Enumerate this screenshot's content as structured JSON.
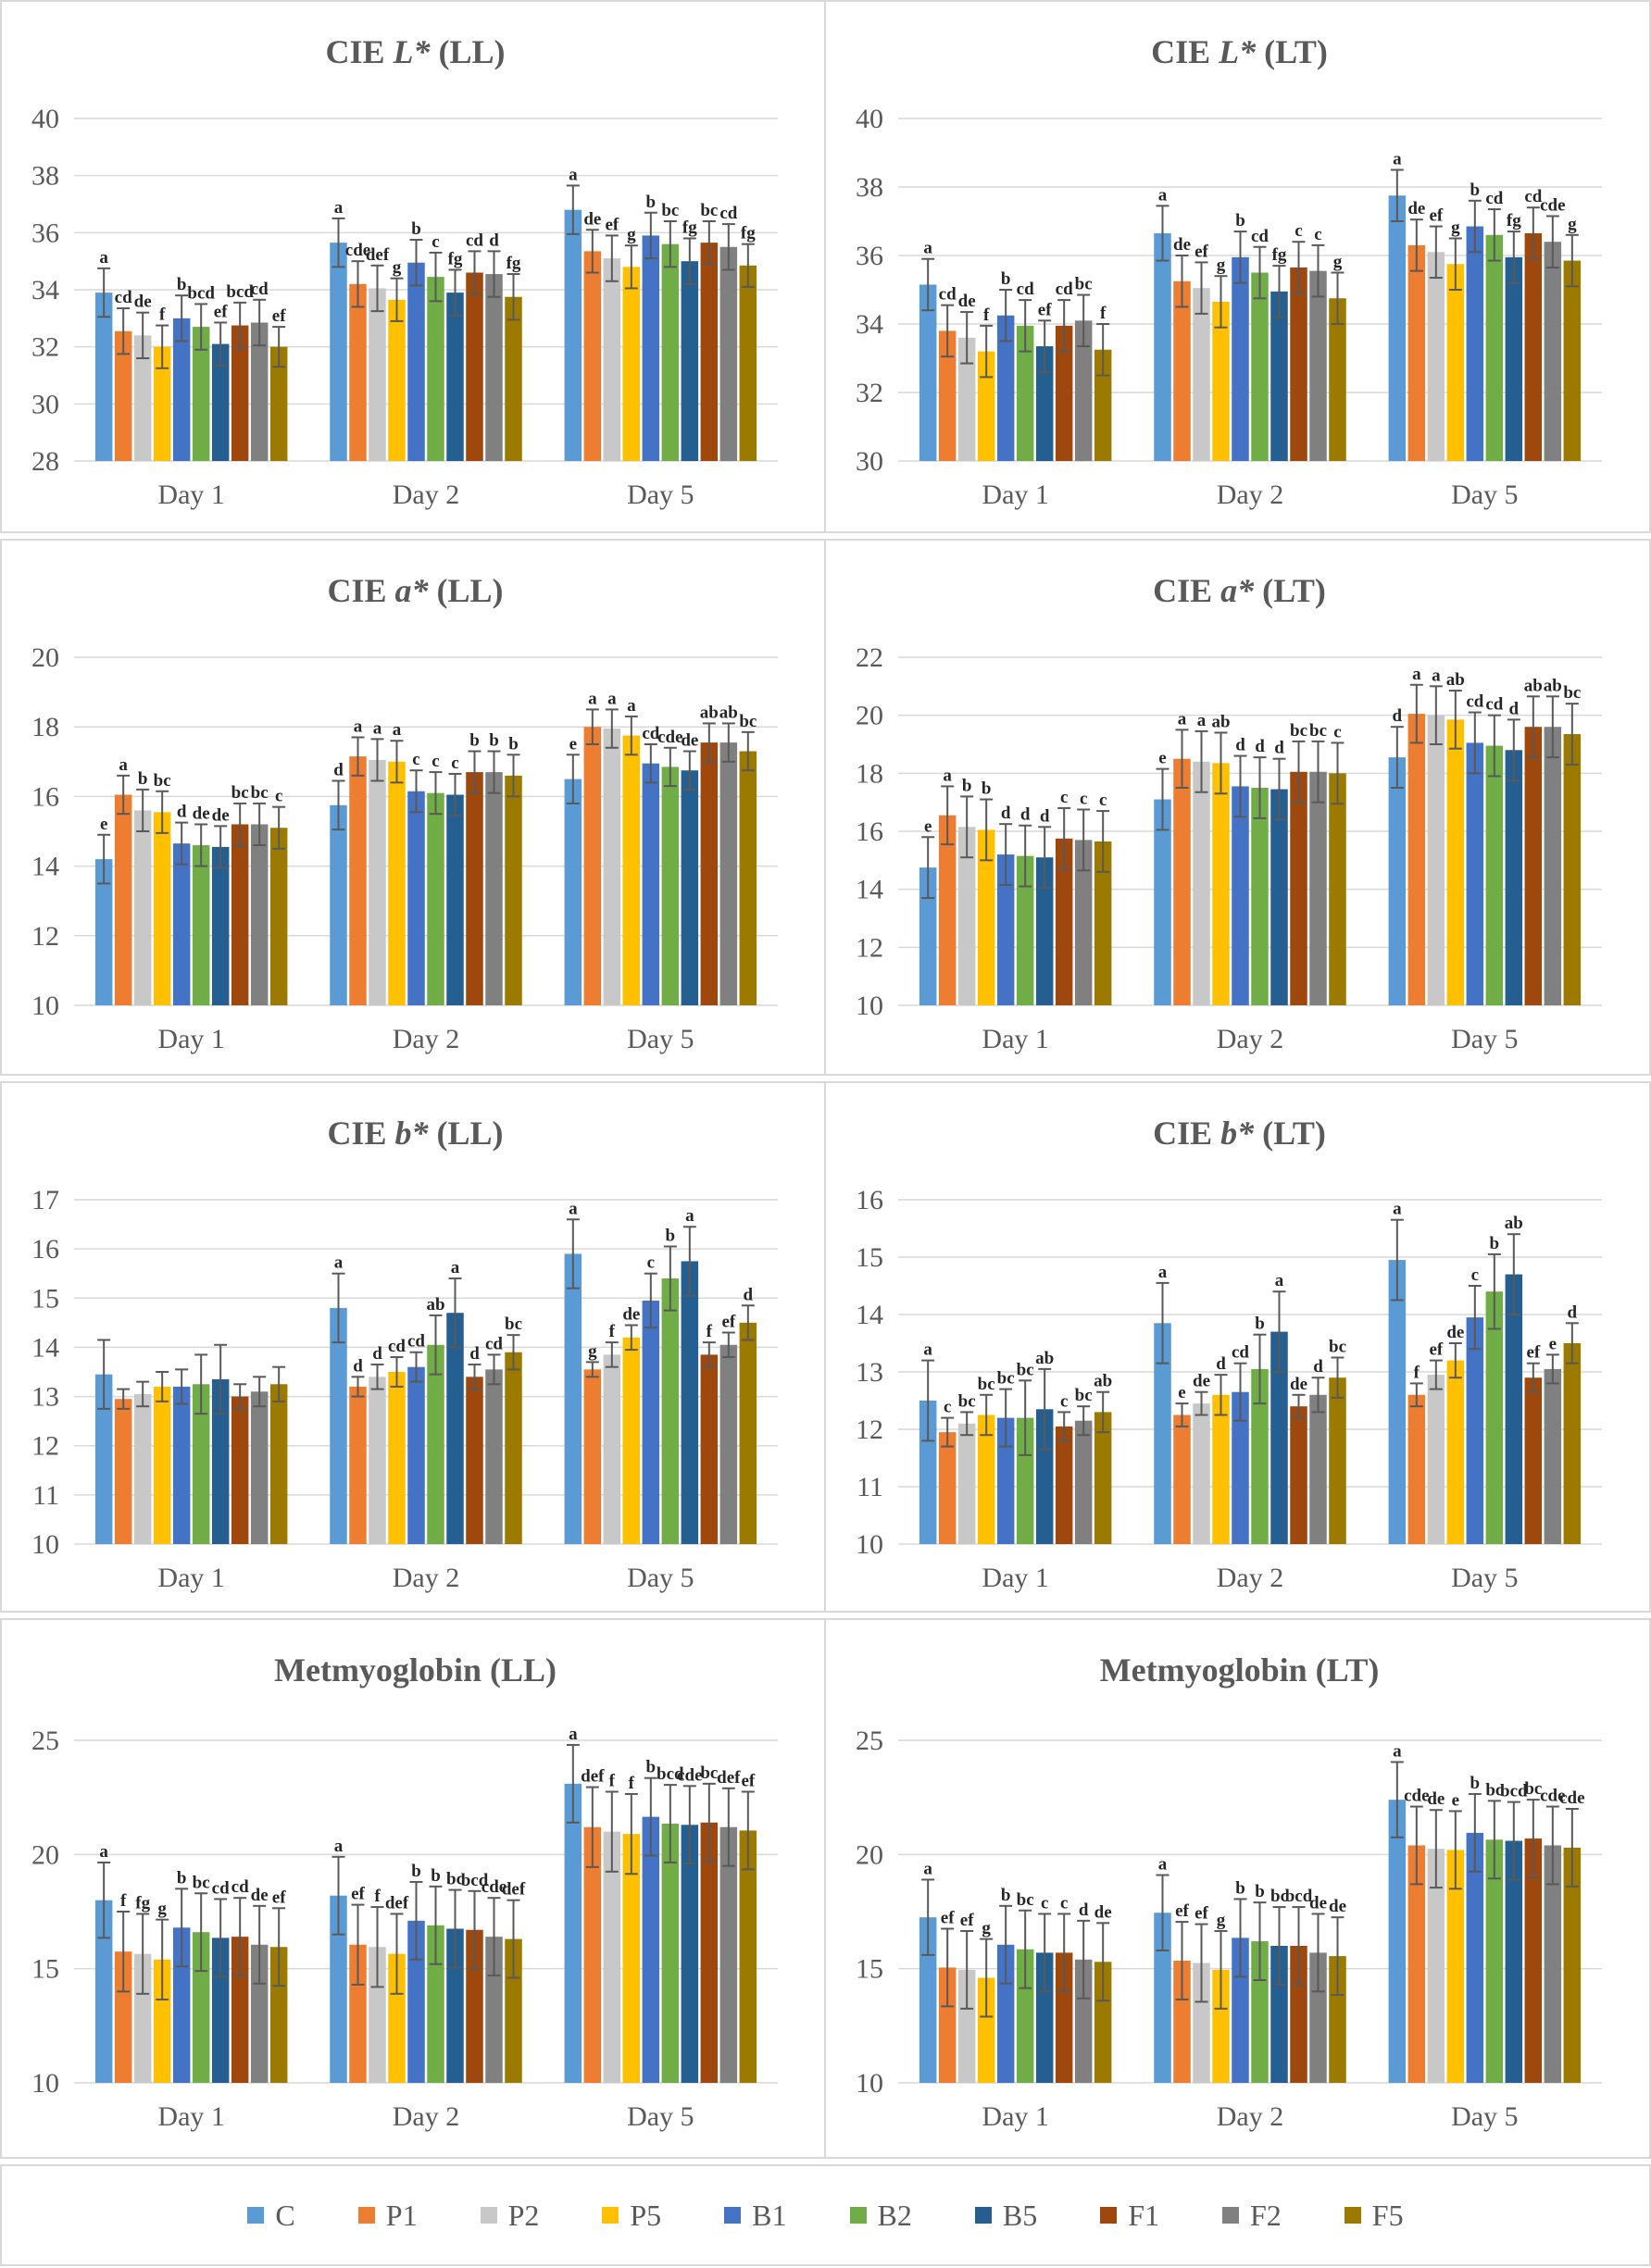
{
  "series": [
    "C",
    "P1",
    "P2",
    "P5",
    "B1",
    "B2",
    "B5",
    "F1",
    "F2",
    "F5"
  ],
  "colors": [
    "#5b9bd5",
    "#ed7d31",
    "#c8c8c8",
    "#ffc000",
    "#4472c4",
    "#70ad47",
    "#255e91",
    "#9e480e",
    "#808080",
    "#9c7a00"
  ],
  "categories": [
    "Day 1",
    "Day 2",
    "Day 5"
  ],
  "chart_data": [
    {
      "type": "bar",
      "title_pre": "CIE ",
      "title_var": "L*",
      "title_post": " (LL)",
      "ylim": [
        28,
        40
      ],
      "yticks": [
        28,
        30,
        32,
        34,
        36,
        38,
        40
      ],
      "values": [
        [
          33.9,
          32.55,
          32.4,
          32.0,
          33.0,
          32.7,
          32.1,
          32.75,
          32.85,
          32.0
        ],
        [
          35.65,
          34.2,
          34.05,
          33.65,
          34.95,
          34.45,
          33.9,
          34.6,
          34.55,
          33.75
        ],
        [
          36.8,
          35.35,
          35.1,
          34.8,
          35.9,
          35.6,
          35.0,
          35.65,
          35.5,
          34.85
        ]
      ],
      "errors": [
        [
          0.85,
          0.8,
          0.8,
          0.75,
          0.8,
          0.8,
          0.75,
          0.8,
          0.8,
          0.7
        ],
        [
          0.85,
          0.8,
          0.8,
          0.75,
          0.8,
          0.85,
          0.8,
          0.75,
          0.8,
          0.8
        ],
        [
          0.85,
          0.75,
          0.8,
          0.75,
          0.8,
          0.8,
          0.8,
          0.75,
          0.8,
          0.75
        ]
      ],
      "labels": [
        [
          "a",
          "cd",
          "de",
          "f",
          "b",
          "bcd",
          "ef",
          "bcd",
          "cd",
          "ef"
        ],
        [
          "a",
          "cde",
          "def",
          "g",
          "b",
          "c",
          "fg",
          "cd",
          "d",
          "fg"
        ],
        [
          "a",
          "de",
          "ef",
          "g",
          "b",
          "bc",
          "fg",
          "bc",
          "cd",
          "fg"
        ]
      ]
    },
    {
      "type": "bar",
      "title_pre": "CIE ",
      "title_var": "L*",
      "title_post": " (LT)",
      "ylim": [
        30,
        40
      ],
      "yticks": [
        30,
        32,
        34,
        36,
        38,
        40
      ],
      "values": [
        [
          35.15,
          33.8,
          33.6,
          33.2,
          34.25,
          33.95,
          33.35,
          33.95,
          34.1,
          33.25
        ],
        [
          36.65,
          35.25,
          35.05,
          34.65,
          35.95,
          35.5,
          34.95,
          35.65,
          35.55,
          34.75
        ],
        [
          37.75,
          36.3,
          36.1,
          35.75,
          36.85,
          36.6,
          35.95,
          36.65,
          36.4,
          35.85
        ]
      ],
      "errors": [
        [
          0.75,
          0.75,
          0.75,
          0.75,
          0.75,
          0.75,
          0.75,
          0.75,
          0.75,
          0.75
        ],
        [
          0.8,
          0.75,
          0.75,
          0.75,
          0.75,
          0.75,
          0.75,
          0.75,
          0.75,
          0.75
        ],
        [
          0.75,
          0.75,
          0.75,
          0.75,
          0.75,
          0.75,
          0.75,
          0.75,
          0.75,
          0.75
        ]
      ],
      "labels": [
        [
          "a",
          "cd",
          "de",
          "f",
          "b",
          "cd",
          "ef",
          "cd",
          "bc",
          "f"
        ],
        [
          "a",
          "de",
          "ef",
          "g",
          "b",
          "cd",
          "fg",
          "c",
          "c",
          "g"
        ],
        [
          "a",
          "de",
          "ef",
          "g",
          "b",
          "cd",
          "fg",
          "cd",
          "cde",
          "g"
        ]
      ]
    },
    {
      "type": "bar",
      "title_pre": "CIE ",
      "title_var": "a*",
      "title_post": " (LL)",
      "ylim": [
        10,
        20
      ],
      "yticks": [
        10,
        12,
        14,
        16,
        18,
        20
      ],
      "values": [
        [
          14.2,
          16.05,
          15.6,
          15.55,
          14.65,
          14.6,
          14.55,
          15.2,
          15.2,
          15.1
        ],
        [
          15.75,
          17.15,
          17.05,
          17.0,
          16.15,
          16.1,
          16.05,
          16.7,
          16.7,
          16.6
        ],
        [
          16.5,
          18.0,
          17.95,
          17.75,
          16.95,
          16.85,
          16.75,
          17.55,
          17.55,
          17.3
        ]
      ],
      "errors": [
        [
          0.7,
          0.55,
          0.6,
          0.6,
          0.6,
          0.6,
          0.6,
          0.6,
          0.6,
          0.6
        ],
        [
          0.7,
          0.55,
          0.6,
          0.6,
          0.6,
          0.6,
          0.6,
          0.6,
          0.6,
          0.6
        ],
        [
          0.7,
          0.5,
          0.55,
          0.55,
          0.55,
          0.55,
          0.55,
          0.55,
          0.55,
          0.55
        ]
      ],
      "labels": [
        [
          "e",
          "a",
          "b",
          "bc",
          "d",
          "de",
          "de",
          "bc",
          "bc",
          "c"
        ],
        [
          "d",
          "a",
          "a",
          "a",
          "c",
          "c",
          "c",
          "b",
          "b",
          "b"
        ],
        [
          "e",
          "a",
          "a",
          "a",
          "cd",
          "cde",
          "de",
          "ab",
          "ab",
          "bc"
        ]
      ]
    },
    {
      "type": "bar",
      "title_pre": "CIE ",
      "title_var": "a*",
      "title_post": " (LT)",
      "ylim": [
        10,
        22
      ],
      "yticks": [
        10,
        12,
        14,
        16,
        18,
        20,
        22
      ],
      "values": [
        [
          14.75,
          16.55,
          16.15,
          16.05,
          15.2,
          15.15,
          15.1,
          15.75,
          15.7,
          15.65
        ],
        [
          17.1,
          18.5,
          18.4,
          18.35,
          17.55,
          17.5,
          17.45,
          18.05,
          18.05,
          18.0
        ],
        [
          18.55,
          20.05,
          20.0,
          19.85,
          19.05,
          18.95,
          18.8,
          19.6,
          19.6,
          19.35
        ]
      ],
      "errors": [
        [
          1.05,
          1.0,
          1.05,
          1.05,
          1.05,
          1.05,
          1.05,
          1.05,
          1.05,
          1.05
        ],
        [
          1.05,
          1.0,
          1.05,
          1.05,
          1.05,
          1.05,
          1.05,
          1.05,
          1.05,
          1.05
        ],
        [
          1.05,
          1.0,
          1.0,
          1.0,
          1.05,
          1.05,
          1.05,
          1.05,
          1.05,
          1.05
        ]
      ],
      "labels": [
        [
          "e",
          "a",
          "b",
          "b",
          "d",
          "d",
          "d",
          "c",
          "c",
          "c"
        ],
        [
          "e",
          "a",
          "a",
          "ab",
          "d",
          "d",
          "d",
          "bc",
          "bc",
          "c"
        ],
        [
          "d",
          "a",
          "a",
          "ab",
          "cd",
          "cd",
          "d",
          "ab",
          "ab",
          "bc"
        ]
      ]
    },
    {
      "type": "bar",
      "title_pre": "CIE ",
      "title_var": "b*",
      "title_post": " (LL)",
      "ylim": [
        10,
        17
      ],
      "yticks": [
        10,
        11,
        12,
        13,
        14,
        15,
        16,
        17
      ],
      "values": [
        [
          13.45,
          12.95,
          13.05,
          13.2,
          13.2,
          13.25,
          13.35,
          13.0,
          13.1,
          13.25
        ],
        [
          14.8,
          13.2,
          13.4,
          13.5,
          13.6,
          14.05,
          14.7,
          13.4,
          13.55,
          13.9
        ],
        [
          15.9,
          13.55,
          13.85,
          14.2,
          14.95,
          15.4,
          15.75,
          13.85,
          14.05,
          14.5
        ]
      ],
      "errors": [
        [
          0.7,
          0.2,
          0.25,
          0.3,
          0.35,
          0.6,
          0.7,
          0.25,
          0.3,
          0.35
        ],
        [
          0.7,
          0.2,
          0.25,
          0.3,
          0.3,
          0.6,
          0.7,
          0.25,
          0.3,
          0.35
        ],
        [
          0.7,
          0.15,
          0.25,
          0.25,
          0.55,
          0.65,
          0.7,
          0.25,
          0.25,
          0.35
        ]
      ],
      "labels": [
        [
          "",
          "",
          "",
          "",
          "",
          "",
          "",
          "",
          "",
          ""
        ],
        [
          "a",
          "d",
          "d",
          "cd",
          "cd",
          "ab",
          "a",
          "d",
          "cd",
          "bc"
        ],
        [
          "a",
          "g",
          "f",
          "de",
          "c",
          "b",
          "a",
          "f",
          "ef",
          "d"
        ]
      ]
    },
    {
      "type": "bar",
      "title_pre": "CIE ",
      "title_var": "b*",
      "title_post": " (LT)",
      "ylim": [
        10,
        16
      ],
      "yticks": [
        10,
        11,
        12,
        13,
        14,
        15,
        16
      ],
      "values": [
        [
          12.5,
          11.95,
          12.1,
          12.25,
          12.2,
          12.2,
          12.35,
          12.05,
          12.15,
          12.3
        ],
        [
          13.85,
          12.25,
          12.45,
          12.6,
          12.65,
          13.05,
          13.7,
          12.4,
          12.6,
          12.9
        ],
        [
          14.95,
          12.6,
          12.95,
          13.2,
          13.95,
          14.4,
          14.7,
          12.9,
          13.05,
          13.5
        ]
      ],
      "errors": [
        [
          0.7,
          0.25,
          0.2,
          0.35,
          0.5,
          0.65,
          0.7,
          0.25,
          0.25,
          0.35
        ],
        [
          0.7,
          0.2,
          0.2,
          0.35,
          0.5,
          0.6,
          0.7,
          0.2,
          0.3,
          0.35
        ],
        [
          0.7,
          0.2,
          0.25,
          0.3,
          0.55,
          0.65,
          0.7,
          0.25,
          0.25,
          0.35
        ]
      ],
      "labels": [
        [
          "a",
          "c",
          "bc",
          "bc",
          "bc",
          "bc",
          "ab",
          "c",
          "bc",
          "ab"
        ],
        [
          "a",
          "e",
          "de",
          "d",
          "cd",
          "b",
          "a",
          "de",
          "d",
          "bc"
        ],
        [
          "a",
          "f",
          "ef",
          "de",
          "c",
          "b",
          "ab",
          "ef",
          "e",
          "d"
        ]
      ]
    },
    {
      "type": "bar",
      "title_pre": "",
      "title_var": "",
      "title_post": "Metmyoglobin (LL)",
      "ylim": [
        10,
        25
      ],
      "yticks": [
        10,
        15,
        20,
        25
      ],
      "values": [
        [
          18.0,
          15.75,
          15.65,
          15.4,
          16.8,
          16.6,
          16.35,
          16.4,
          16.05,
          15.95
        ],
        [
          18.2,
          16.05,
          15.95,
          15.65,
          17.1,
          16.9,
          16.75,
          16.7,
          16.4,
          16.3
        ],
        [
          23.1,
          21.2,
          21.0,
          20.9,
          21.65,
          21.35,
          21.3,
          21.4,
          21.2,
          21.05
        ]
      ],
      "errors": [
        [
          1.65,
          1.75,
          1.75,
          1.75,
          1.7,
          1.7,
          1.7,
          1.7,
          1.7,
          1.7
        ],
        [
          1.7,
          1.75,
          1.75,
          1.75,
          1.7,
          1.7,
          1.7,
          1.7,
          1.7,
          1.7
        ],
        [
          1.7,
          1.75,
          1.75,
          1.75,
          1.7,
          1.7,
          1.7,
          1.7,
          1.7,
          1.7
        ]
      ],
      "labels": [
        [
          "a",
          "f",
          "fg",
          "g",
          "b",
          "bc",
          "cd",
          "cd",
          "de",
          "ef"
        ],
        [
          "a",
          "ef",
          "f",
          "def",
          "b",
          "b",
          "bc",
          "bcd",
          "cde",
          "def"
        ],
        [
          "a",
          "def",
          "f",
          "f",
          "b",
          "bcd",
          "cde",
          "bc",
          "def",
          "ef"
        ]
      ]
    },
    {
      "type": "bar",
      "title_pre": "",
      "title_var": "",
      "title_post": "Metmyoglobin (LT)",
      "ylim": [
        10,
        25
      ],
      "yticks": [
        10,
        15,
        20,
        25
      ],
      "values": [
        [
          17.25,
          15.05,
          14.95,
          14.6,
          16.05,
          15.85,
          15.7,
          15.7,
          15.4,
          15.3
        ],
        [
          17.45,
          15.35,
          15.25,
          14.95,
          16.35,
          16.2,
          16.0,
          16.0,
          15.7,
          15.55
        ],
        [
          22.4,
          20.4,
          20.25,
          20.2,
          20.95,
          20.65,
          20.6,
          20.7,
          20.4,
          20.3
        ]
      ],
      "errors": [
        [
          1.65,
          1.7,
          1.7,
          1.7,
          1.7,
          1.7,
          1.7,
          1.7,
          1.7,
          1.7
        ],
        [
          1.65,
          1.7,
          1.7,
          1.7,
          1.7,
          1.7,
          1.7,
          1.7,
          1.7,
          1.7
        ],
        [
          1.65,
          1.7,
          1.7,
          1.7,
          1.7,
          1.7,
          1.7,
          1.7,
          1.7,
          1.7
        ]
      ],
      "labels": [
        [
          "a",
          "ef",
          "ef",
          "g",
          "b",
          "bc",
          "c",
          "c",
          "d",
          "de"
        ],
        [
          "a",
          "ef",
          "ef",
          "g",
          "b",
          "b",
          "bc",
          "bcd",
          "de",
          "de"
        ],
        [
          "a",
          "cde",
          "de",
          "e",
          "b",
          "bc",
          "bcd",
          "bc",
          "cde",
          "cde"
        ]
      ]
    }
  ]
}
